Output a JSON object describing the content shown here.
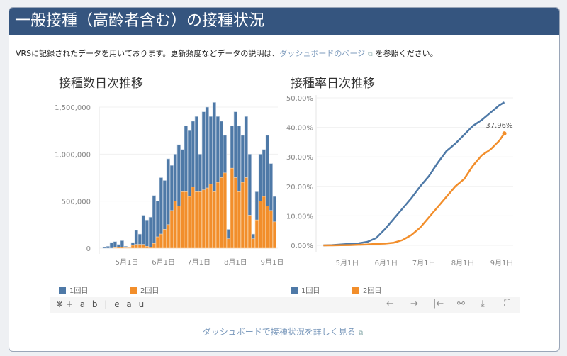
{
  "header": {
    "title": "一般接種（高齢者含む）の接種状況"
  },
  "intro": {
    "text_before": "VRSに記録されたデータを用いております。更新頻度などデータの説明は、",
    "link": "ダッシュボードのページ",
    "text_after": "を参照ください。",
    "external_icon": "external-link-icon"
  },
  "colors": {
    "header": "#35557f",
    "dose1": "#4e79a7",
    "dose2": "#f28e2b",
    "link": "#7d9bbd"
  },
  "legend": {
    "dose1": "1回目",
    "dose2": "2回目"
  },
  "toolbar": {
    "logo": "+ a b | e a u",
    "icons": [
      "undo-icon",
      "redo-icon",
      "revert-icon",
      "share-icon",
      "download-icon",
      "fullscreen-icon"
    ],
    "glyphs": [
      "←",
      "→",
      "|←",
      "⚯",
      "⤓",
      "⛶"
    ]
  },
  "footer": {
    "link": "ダッシュボードで接種状況を詳しく見る"
  },
  "chart_data": [
    {
      "type": "bar",
      "stacked": true,
      "title": "接種数日次推移",
      "yticks": [
        "1,500,000",
        "1,000,000",
        "500,000",
        "0"
      ],
      "ytick_values": [
        1500000,
        1000000,
        500000,
        0
      ],
      "xticks": [
        "5月1日",
        "6月1日",
        "7月1日",
        "8月1日",
        "9月1日"
      ],
      "xtick_dates": [
        "5/1",
        "6/1",
        "7/1",
        "8/1",
        "9/1"
      ],
      "ylim": [
        0,
        1560000
      ],
      "dates": [
        "4/12",
        "4/15",
        "4/18",
        "4/21",
        "4/24",
        "4/27",
        "4/30",
        "5/3",
        "5/6",
        "5/9",
        "5/12",
        "5/15",
        "5/18",
        "5/21",
        "5/24",
        "5/27",
        "5/30",
        "6/2",
        "6/5",
        "6/8",
        "6/11",
        "6/14",
        "6/17",
        "6/20",
        "6/23",
        "6/26",
        "6/29",
        "7/2",
        "7/5",
        "7/8",
        "7/11",
        "7/14",
        "7/17",
        "7/20",
        "7/23",
        "7/26",
        "7/29",
        "8/1",
        "8/4",
        "8/7",
        "8/10",
        "8/13",
        "8/16",
        "8/19",
        "8/22",
        "8/25",
        "8/28",
        "8/31",
        "9/3"
      ],
      "series": [
        {
          "name": "1回目",
          "totals_with_2回目": [
            10000,
            20000,
            60000,
            70000,
            40000,
            80000,
            20000,
            10000,
            60000,
            190000,
            150000,
            350000,
            300000,
            330000,
            560000,
            500000,
            750000,
            720000,
            950000,
            880000,
            1000000,
            1100000,
            1050000,
            1300000,
            1250000,
            1350000,
            1400000,
            1000000,
            1450000,
            1500000,
            1400000,
            1550000,
            1400000,
            1350000,
            1200000,
            200000,
            1300000,
            1450000,
            1300000,
            1200000,
            1400000,
            1000000,
            150000,
            600000,
            1000000,
            1050000,
            1200000,
            900000,
            550000
          ]
        },
        {
          "name": "2回目",
          "values": [
            0,
            0,
            0,
            5000,
            10000,
            10000,
            5000,
            5000,
            30000,
            40000,
            40000,
            40000,
            20000,
            10000,
            50000,
            120000,
            150000,
            200000,
            250000,
            400000,
            500000,
            450000,
            600000,
            600000,
            550000,
            650000,
            600000,
            600000,
            620000,
            640000,
            680000,
            600000,
            700000,
            750000,
            800000,
            100000,
            850000,
            750000,
            600000,
            700000,
            750000,
            350000,
            100000,
            300000,
            500000,
            550000,
            450000,
            400000,
            280000
          ]
        }
      ]
    },
    {
      "type": "line",
      "title": "接種率日次推移",
      "yticks": [
        "50.00%",
        "40.00%",
        "30.00%",
        "20.00%",
        "10.00%",
        "0.00%"
      ],
      "ytick_values": [
        50,
        40,
        30,
        20,
        10,
        0
      ],
      "xticks": [
        "5月1日",
        "6月1日",
        "7月1日",
        "8月1日",
        "9月1日"
      ],
      "xtick_dates": [
        "5/1",
        "6/1",
        "7/1",
        "8/1",
        "9/1"
      ],
      "ylim": [
        0,
        50
      ],
      "dates": [
        "4/12",
        "4/19",
        "4/26",
        "5/3",
        "5/10",
        "5/17",
        "5/24",
        "5/31",
        "6/7",
        "6/14",
        "6/21",
        "6/28",
        "7/5",
        "7/12",
        "7/19",
        "7/26",
        "8/2",
        "8/9",
        "8/16",
        "8/23",
        "8/30",
        "9/3"
      ],
      "series": [
        {
          "name": "1回目",
          "values": [
            0,
            0.1,
            0.3,
            0.5,
            0.7,
            1.2,
            2.5,
            5.5,
            9,
            12.5,
            16,
            20,
            23.5,
            28,
            32,
            34.5,
            37.5,
            40.5,
            42.5,
            45,
            47.5,
            48.5
          ]
        },
        {
          "name": "2回目",
          "values": [
            0,
            0,
            0.05,
            0.1,
            0.2,
            0.3,
            0.5,
            0.6,
            0.9,
            1.8,
            3.5,
            6,
            9.5,
            13,
            16.5,
            20,
            22.5,
            27,
            30.5,
            32.5,
            35.5,
            37.96
          ]
        }
      ],
      "annotation": "37.96%"
    }
  ]
}
